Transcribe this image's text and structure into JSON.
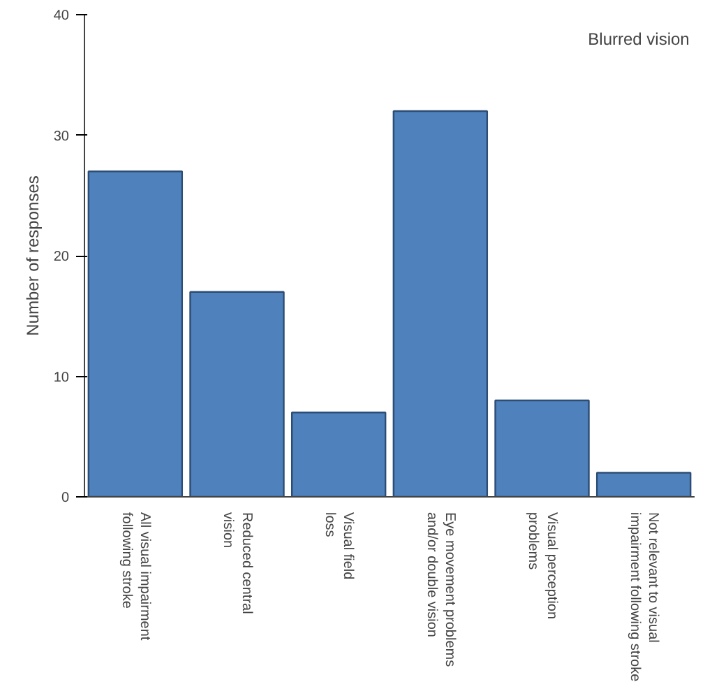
{
  "chart_data": {
    "type": "bar",
    "title": "Blurred vision",
    "ylabel": "Number of responses",
    "categories": [
      "All visual impairment following stroke",
      "Reduced central vision",
      "Visual field loss",
      "Eye movement problems and/or double vision",
      "Visual perception problems",
      "Not relevant to visual impairment following stroke"
    ],
    "values": [
      27,
      17,
      7,
      32,
      8,
      2
    ],
    "color": "#4f81bd",
    "ylim": [
      0,
      40
    ],
    "yticks": [
      0,
      10,
      20,
      30,
      40
    ],
    "grid": false
  }
}
